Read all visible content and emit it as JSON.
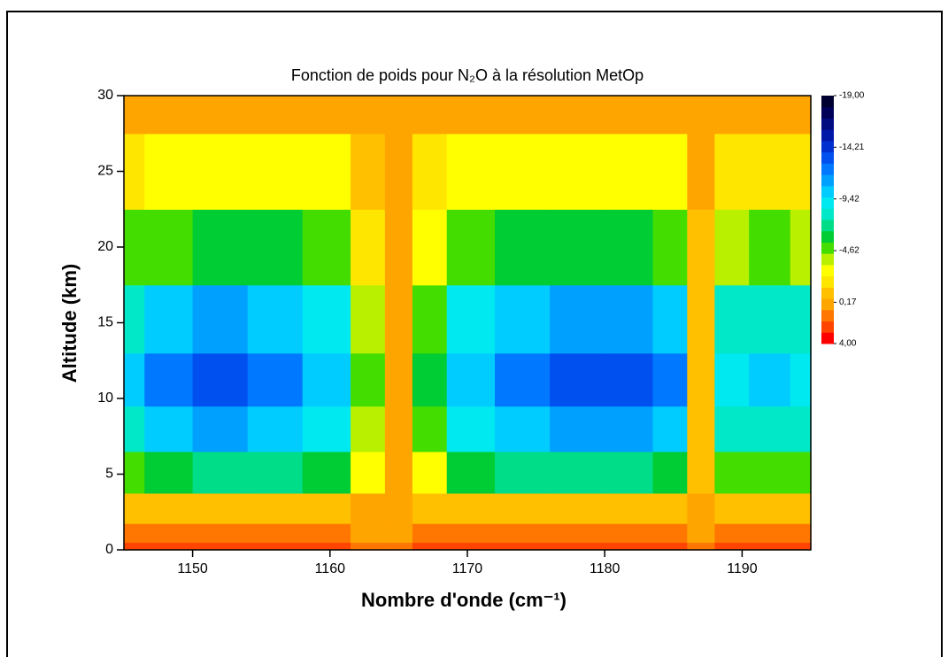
{
  "chart_data": {
    "type": "contour",
    "title": "Fonction de poids pour N₂O à la résolution MetOp",
    "x_label": "Nombre d'onde (cm⁻¹)",
    "y_label": "Altitude (km)",
    "x": [
      1145,
      1148,
      1152,
      1156,
      1160,
      1163,
      1165,
      1167,
      1170,
      1174,
      1178,
      1182,
      1185,
      1187,
      1189,
      1192,
      1195
    ],
    "y": [
      0,
      1,
      2.5,
      5,
      8,
      11,
      15,
      20,
      25,
      30
    ],
    "z": [
      [
        2.5,
        2.5,
        2.5,
        2.5,
        2.5,
        1.2,
        1.2,
        2.5,
        2.5,
        2.5,
        2.5,
        2.5,
        2.5,
        1.2,
        2.5,
        2.5,
        2.5
      ],
      [
        1.8,
        1.8,
        1.8,
        1.8,
        1.8,
        0.8,
        0.8,
        1.8,
        1.8,
        1.8,
        1.8,
        1.8,
        1.8,
        0.8,
        1.8,
        1.8,
        1.8
      ],
      [
        -0.6,
        -0.9,
        -1,
        -0.9,
        -0.7,
        -0.1,
        0.5,
        -0.3,
        -0.7,
        -0.9,
        -1.1,
        -1.1,
        -0.9,
        0.4,
        -0.6,
        -0.6,
        -0.6
      ],
      [
        -5.1,
        -6.3,
        -7,
        -6.6,
        -5.5,
        -2.5,
        0.5,
        -3.3,
        -5.5,
        -6.6,
        -7.4,
        -7.4,
        -6.3,
        -0.3,
        -4.8,
        -5.1,
        -4.8
      ],
      [
        -8.1,
        -9.9,
        -11,
        -10.4,
        -8.7,
        -4.1,
        0.5,
        -5.3,
        -8.7,
        -10.4,
        -11.6,
        -11.6,
        -9.9,
        -0.7,
        -7.6,
        -8.1,
        -7.6
      ],
      [
        -9.6,
        -11.7,
        -13,
        -12.3,
        -10.3,
        -4.9,
        0.5,
        -6.3,
        -10.3,
        -12.3,
        -13.7,
        -13.7,
        -11.7,
        -0.9,
        -9,
        -9.6,
        -9
      ],
      [
        -8.1,
        -9.9,
        -11,
        -10.4,
        -8.7,
        -4.1,
        0.5,
        -5.3,
        -8.7,
        -10.4,
        -11.6,
        -11.6,
        -9.9,
        -0.7,
        -7.6,
        -8.1,
        -7.6
      ],
      [
        -4.4,
        -5.4,
        -6,
        -5.7,
        -4.7,
        -2.1,
        0.5,
        -2.8,
        -4.7,
        -5.7,
        -6.3,
        -6.3,
        -5.4,
        -0.2,
        -4.1,
        -4.4,
        -4.1
      ],
      [
        -2.1,
        -2.7,
        -3,
        -2.8,
        -2.3,
        -0.9,
        0.5,
        -1.3,
        -2.3,
        -2.8,
        -3.2,
        -3.2,
        -2.7,
        0.2,
        -2,
        -2.1,
        -2
      ],
      [
        0.3,
        0.3,
        0.3,
        0.3,
        0.3,
        0.3,
        0.3,
        0.3,
        0.3,
        0.3,
        0.3,
        0.3,
        0.3,
        0.3,
        0.3,
        0.3,
        0.3
      ]
    ],
    "xlim": [
      1145,
      1195
    ],
    "xticks": [
      1150,
      1160,
      1170,
      1180,
      1190
    ],
    "ylim": [
      0,
      30
    ],
    "yticks": [
      0,
      5,
      10,
      15,
      20,
      25,
      30
    ],
    "zlim": [
      4,
      -19
    ],
    "zticks": [
      {
        "value": -19,
        "label": "-19,00"
      },
      {
        "value": -14.21,
        "label": "-14,21"
      },
      {
        "value": -9.42,
        "label": "-9,42"
      },
      {
        "value": -4.62,
        "label": "-4,62"
      },
      {
        "value": 0.17,
        "label": "0,17"
      },
      {
        "value": 4,
        "label": "4,00"
      }
    ],
    "colorscale": [
      "#ff0000",
      "#ff4400",
      "#ff7700",
      "#ffa500",
      "#ffc000",
      "#ffe600",
      "#ffff00",
      "#b8f000",
      "#44dd00",
      "#00cc33",
      "#00dd88",
      "#00e8c8",
      "#00e8f0",
      "#00ccff",
      "#00a0ff",
      "#0078ff",
      "#0050f0",
      "#0030d0",
      "#0018a8",
      "#000c80",
      "#000058",
      "#000030"
    ]
  }
}
